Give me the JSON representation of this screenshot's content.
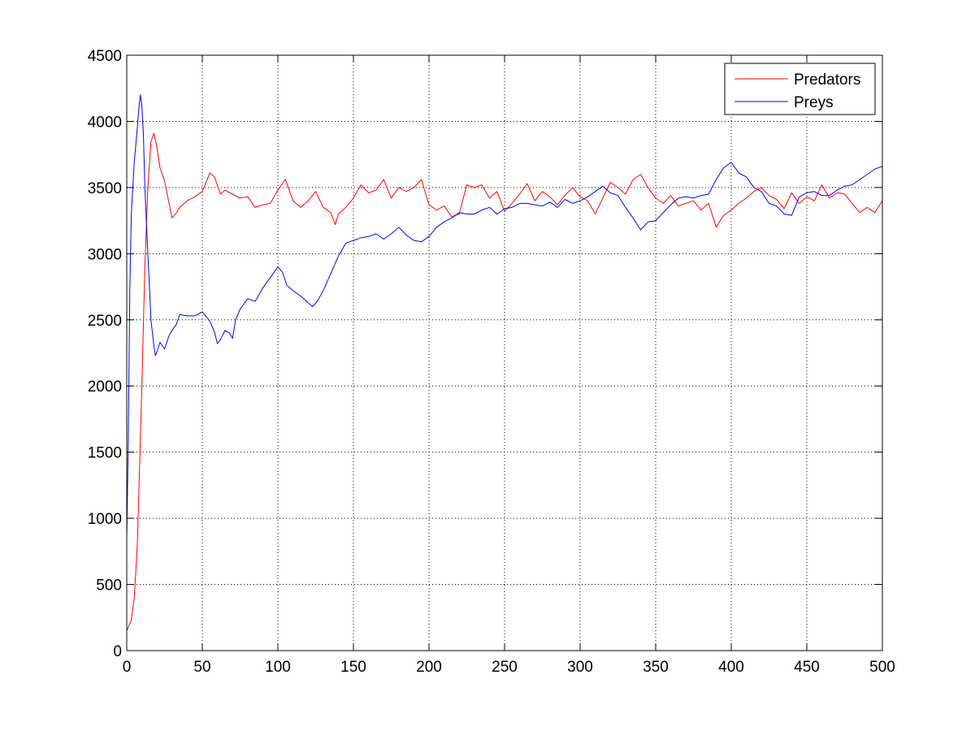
{
  "chart_data": {
    "type": "line",
    "title": "",
    "xlabel": "",
    "ylabel": "",
    "xlim": [
      0,
      500
    ],
    "ylim": [
      0,
      4500
    ],
    "xticks": [
      0,
      50,
      100,
      150,
      200,
      250,
      300,
      350,
      400,
      450,
      500
    ],
    "yticks": [
      0,
      500,
      1000,
      1500,
      2000,
      2500,
      3000,
      3500,
      4000,
      4500
    ],
    "grid": true,
    "legend_position": "top-right",
    "series": [
      {
        "name": "Predators",
        "color": "#ff0000",
        "x": [
          0,
          3,
          5,
          7,
          8,
          10,
          12,
          14,
          16,
          18,
          20,
          22,
          25,
          28,
          30,
          33,
          35,
          40,
          45,
          50,
          55,
          58,
          62,
          65,
          70,
          75,
          80,
          85,
          90,
          95,
          100,
          105,
          110,
          115,
          120,
          125,
          130,
          135,
          138,
          140,
          145,
          150,
          155,
          160,
          165,
          170,
          175,
          180,
          185,
          190,
          195,
          200,
          205,
          210,
          215,
          220,
          225,
          230,
          235,
          240,
          245,
          250,
          255,
          260,
          265,
          270,
          275,
          280,
          285,
          290,
          295,
          300,
          305,
          310,
          315,
          320,
          325,
          330,
          335,
          340,
          345,
          350,
          355,
          360,
          365,
          370,
          375,
          380,
          385,
          390,
          395,
          400,
          405,
          410,
          415,
          420,
          425,
          430,
          435,
          440,
          445,
          450,
          455,
          460,
          465,
          470,
          475,
          480,
          485,
          490,
          495,
          500
        ],
        "y": [
          150,
          230,
          400,
          800,
          1200,
          2000,
          2900,
          3500,
          3850,
          3910,
          3800,
          3650,
          3550,
          3380,
          3270,
          3310,
          3350,
          3400,
          3430,
          3470,
          3610,
          3580,
          3450,
          3480,
          3450,
          3420,
          3430,
          3350,
          3370,
          3380,
          3480,
          3560,
          3400,
          3350,
          3400,
          3470,
          3350,
          3310,
          3220,
          3300,
          3350,
          3420,
          3520,
          3460,
          3480,
          3560,
          3420,
          3500,
          3470,
          3500,
          3560,
          3370,
          3330,
          3360,
          3280,
          3300,
          3520,
          3500,
          3520,
          3420,
          3470,
          3320,
          3380,
          3450,
          3530,
          3400,
          3470,
          3430,
          3370,
          3440,
          3500,
          3430,
          3400,
          3300,
          3420,
          3540,
          3500,
          3450,
          3560,
          3600,
          3500,
          3420,
          3380,
          3440,
          3360,
          3380,
          3400,
          3330,
          3380,
          3200,
          3290,
          3330,
          3380,
          3420,
          3470,
          3500,
          3440,
          3410,
          3340,
          3460,
          3380,
          3430,
          3400,
          3520,
          3420,
          3460,
          3450,
          3380,
          3310,
          3350,
          3310,
          3400
        ]
      },
      {
        "name": "Preys",
        "color": "#0000ff",
        "x": [
          0,
          1,
          2,
          3,
          5,
          7,
          8,
          9,
          10,
          11,
          12,
          14,
          16,
          18,
          19,
          20,
          22,
          25,
          28,
          30,
          33,
          35,
          40,
          45,
          50,
          55,
          58,
          60,
          62,
          65,
          68,
          70,
          72,
          75,
          80,
          85,
          90,
          95,
          100,
          103,
          106,
          110,
          115,
          120,
          123,
          126,
          130,
          135,
          140,
          145,
          150,
          155,
          160,
          165,
          170,
          175,
          180,
          185,
          190,
          195,
          200,
          205,
          210,
          215,
          220,
          225,
          230,
          235,
          240,
          245,
          250,
          255,
          260,
          265,
          270,
          275,
          280,
          285,
          290,
          295,
          300,
          305,
          310,
          315,
          320,
          325,
          330,
          335,
          340,
          345,
          350,
          355,
          360,
          365,
          370,
          375,
          380,
          385,
          390,
          395,
          400,
          405,
          410,
          415,
          420,
          425,
          430,
          435,
          440,
          445,
          450,
          455,
          460,
          465,
          470,
          475,
          480,
          485,
          490,
          495,
          500
        ],
        "y": [
          850,
          1600,
          2700,
          3300,
          3700,
          3950,
          4100,
          4200,
          4120,
          3900,
          3500,
          3000,
          2500,
          2300,
          2230,
          2260,
          2330,
          2280,
          2380,
          2420,
          2470,
          2540,
          2530,
          2530,
          2560,
          2490,
          2410,
          2320,
          2350,
          2420,
          2400,
          2360,
          2500,
          2580,
          2660,
          2640,
          2740,
          2820,
          2900,
          2860,
          2760,
          2720,
          2680,
          2630,
          2600,
          2640,
          2720,
          2850,
          2980,
          3080,
          3100,
          3120,
          3130,
          3150,
          3110,
          3150,
          3200,
          3140,
          3100,
          3090,
          3130,
          3200,
          3240,
          3270,
          3310,
          3300,
          3300,
          3330,
          3350,
          3300,
          3340,
          3350,
          3380,
          3380,
          3370,
          3360,
          3390,
          3350,
          3410,
          3380,
          3400,
          3430,
          3470,
          3510,
          3460,
          3440,
          3350,
          3270,
          3180,
          3240,
          3250,
          3310,
          3370,
          3420,
          3430,
          3420,
          3440,
          3450,
          3560,
          3650,
          3690,
          3610,
          3580,
          3500,
          3470,
          3380,
          3360,
          3300,
          3290,
          3430,
          3460,
          3470,
          3440,
          3440,
          3480,
          3510,
          3520,
          3560,
          3600,
          3640,
          3660
        ]
      }
    ]
  }
}
